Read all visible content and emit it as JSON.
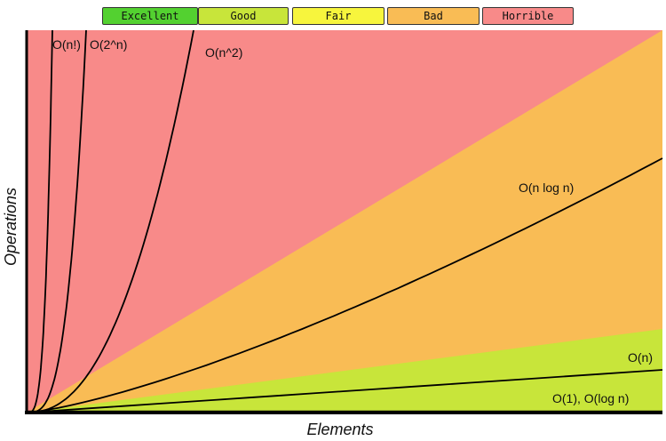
{
  "legend": [
    {
      "label": "Excellent",
      "color": "#53d130"
    },
    {
      "label": "Good",
      "color": "#c8e53a"
    },
    {
      "label": "Fair",
      "color": "#f7f53d"
    },
    {
      "label": "Bad",
      "color": "#f9bc55"
    },
    {
      "label": "Horrible",
      "color": "#f88a89"
    }
  ],
  "chart_data": {
    "type": "line",
    "xlabel": "Elements",
    "ylabel": "Operations",
    "grid": false,
    "region_colors": {
      "horrible": "#f88a89",
      "bad": "#f9bc55",
      "good": "#c8e53a"
    },
    "series": [
      {
        "name": "O(1), O(log n)",
        "complexity": "log"
      },
      {
        "name": "O(n)",
        "complexity": "n"
      },
      {
        "name": "O(n log n)",
        "complexity": "nlogn"
      },
      {
        "name": "O(n^2)",
        "complexity": "n2"
      },
      {
        "name": "O(2^n)",
        "complexity": "2n"
      },
      {
        "name": "O(n!)",
        "complexity": "fact"
      }
    ]
  }
}
